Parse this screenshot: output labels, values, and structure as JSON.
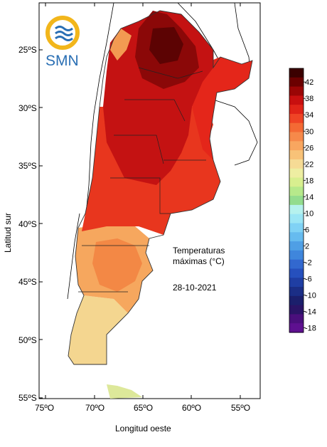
{
  "logo": {
    "text": "SMN",
    "ring_color": "#f2b61b",
    "wave_color": "#2a6fb4"
  },
  "annotation": {
    "title_line1": "Temperaturas",
    "title_line2": "máximas (°C)",
    "date": "28-10-2021"
  },
  "axes": {
    "ylabel": "Latitud sur",
    "xlabel": "Longitud oeste",
    "lat_ticks": [
      "25ºS",
      "30ºS",
      "35ºS",
      "40ºS",
      "45ºS",
      "50ºS",
      "55ºS"
    ],
    "lon_ticks": [
      "75ºO",
      "70ºO",
      "65ºO",
      "60ºO",
      "55ºO"
    ]
  },
  "colorbar": {
    "labels": [
      "42",
      "38",
      "34",
      "30",
      "26",
      "22",
      "18",
      "14",
      "10",
      "6",
      "2",
      "-2",
      "-6",
      "-10",
      "-14",
      "-18"
    ],
    "colors": [
      "#3b0000",
      "#6b0000",
      "#9a0505",
      "#c80f0f",
      "#e02418",
      "#ef4425",
      "#f46a34",
      "#f6894a",
      "#f8a660",
      "#f8c278",
      "#f6db95",
      "#eeeea2",
      "#d8ef8f",
      "#b6e98b",
      "#93dc8e",
      "#b6f2ee",
      "#9ce6f5",
      "#80d2f5",
      "#66bbef",
      "#4f9fe5",
      "#3f86dc",
      "#3268cf",
      "#2650bd",
      "#1f3ea3",
      "#1b2e86",
      "#1b1f6c",
      "#2a1466",
      "#4a0f7c",
      "#5e1090"
    ]
  }
}
